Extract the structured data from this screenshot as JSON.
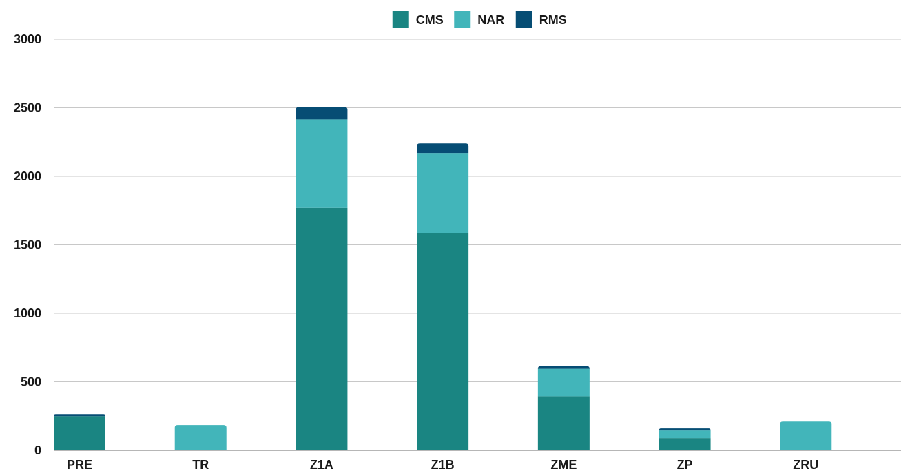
{
  "chart_data": {
    "type": "bar",
    "stacked": true,
    "title": "",
    "xlabel": "",
    "ylabel": "",
    "categories": [
      "PRE",
      "TR",
      "Z1A",
      "Z1B",
      "ZME",
      "ZP",
      "ZRU"
    ],
    "series": [
      {
        "name": "CMS",
        "color": "#1a8582",
        "values": [
          250,
          0,
          1770,
          1585,
          395,
          90,
          0
        ]
      },
      {
        "name": "NAR",
        "color": "#42b5ba",
        "values": [
          0,
          185,
          645,
          585,
          200,
          55,
          210
        ]
      },
      {
        "name": "RMS",
        "color": "#064d74",
        "values": [
          15,
          0,
          90,
          70,
          20,
          15,
          0
        ]
      }
    ],
    "ylim": [
      0,
      3000
    ],
    "yticks": [
      0,
      500,
      1000,
      1500,
      2000,
      2500,
      3000
    ],
    "grid": true,
    "legend_position": "top-center"
  }
}
